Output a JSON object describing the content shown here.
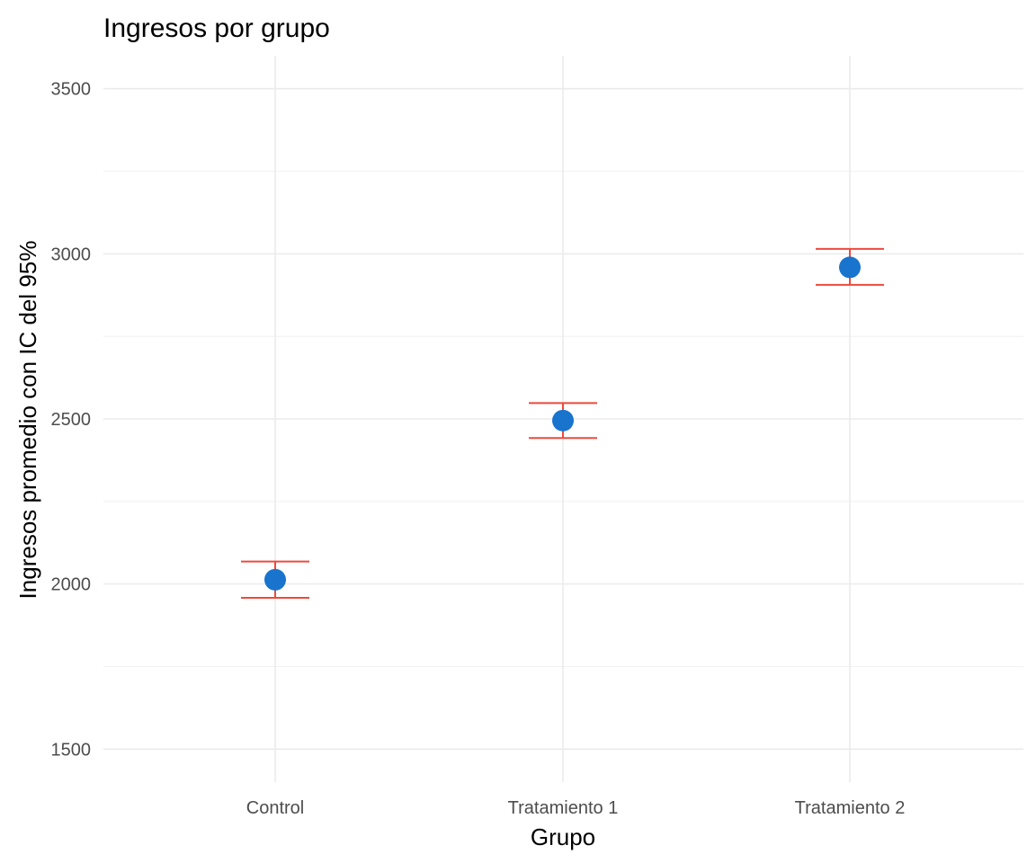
{
  "chart_data": {
    "type": "scatter",
    "title": "Ingresos por grupo",
    "xlabel": "Grupo",
    "ylabel": "Ingresos promedio con IC del 95%",
    "categories": [
      "Control",
      "Tratamiento 1",
      "Tratamiento 2"
    ],
    "series": [
      {
        "values": [
          2013,
          2495,
          2959
        ],
        "ci_lower": [
          1958,
          2442,
          2906
        ],
        "ci_upper": [
          2068,
          2548,
          3015
        ]
      }
    ],
    "ylim": [
      1400,
      3600
    ],
    "yticks": [
      1500,
      2000,
      2500,
      3000,
      3500
    ],
    "ytick_labels": [
      "1500",
      "2000",
      "2500",
      "3000",
      "3500"
    ],
    "grid": true,
    "legend": "none",
    "colors": {
      "point": "#1874cd",
      "errorbar": "#ee4a3c",
      "grid": "#ebebeb",
      "tick_text": "#4d4d4d"
    }
  }
}
